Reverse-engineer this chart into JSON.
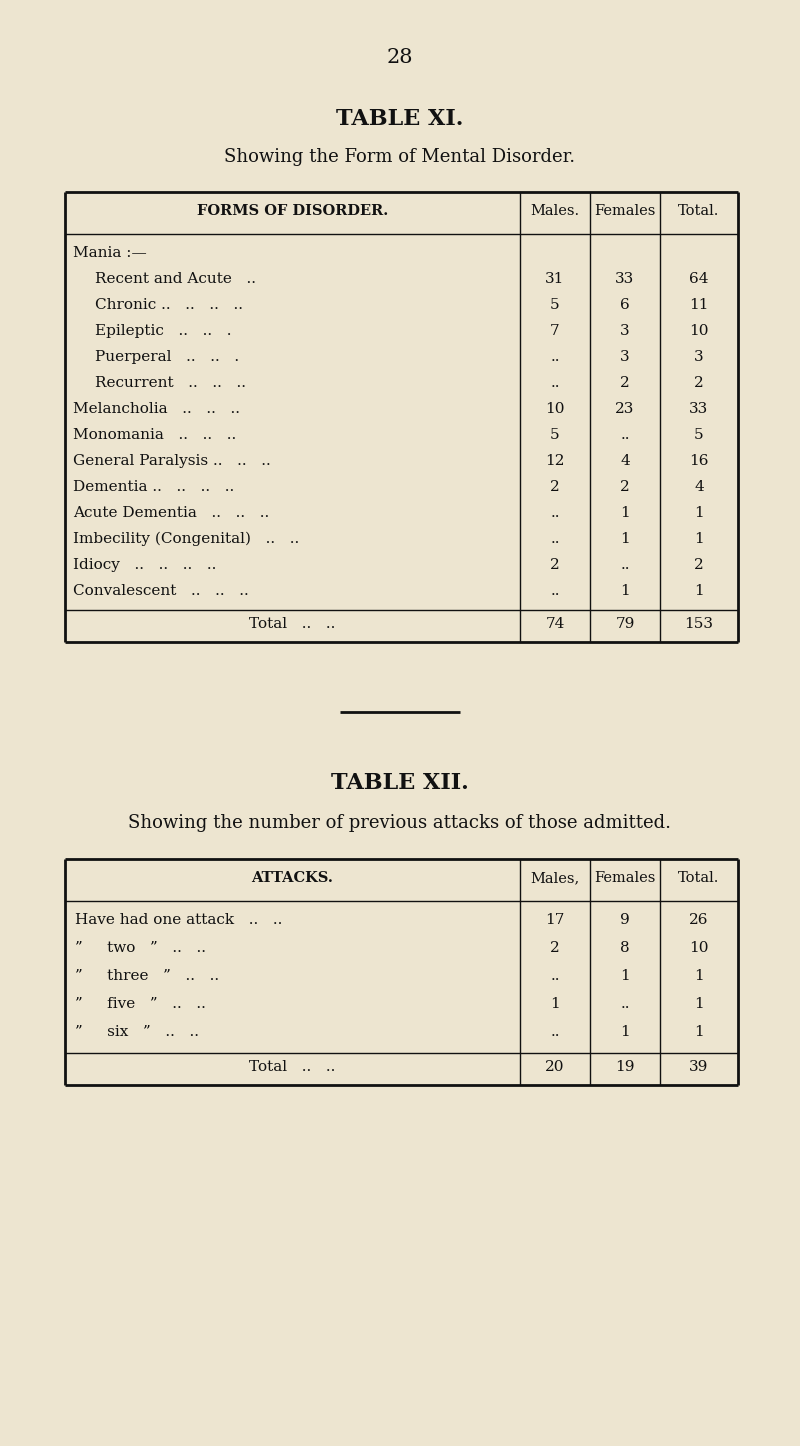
{
  "page_number": "28",
  "bg_color": "#ede5d0",
  "table1": {
    "title": "TABLE XI.",
    "subtitle": "Showing the Form of Mental Disorder.",
    "header": [
      "FORMS OF DISORDER.",
      "Males.",
      "Females",
      "Total."
    ],
    "rows": [
      {
        "label": "Mania :—",
        "indent": false,
        "males": "",
        "females": "",
        "total": ""
      },
      {
        "label": "Recent and Acute   ..",
        "indent": true,
        "males": "31",
        "females": "33",
        "total": "64"
      },
      {
        "label": "Chronic ..   ..   ..   ..",
        "indent": true,
        "males": "5",
        "females": "6",
        "total": "11"
      },
      {
        "label": "Epileptic   ..   ..   .",
        "indent": true,
        "males": "7",
        "females": "3",
        "total": "10"
      },
      {
        "label": "Puerperal   ..   ..   .",
        "indent": true,
        "males": "..",
        "females": "3",
        "total": "3"
      },
      {
        "label": "Recurrent   ..   ..   ..",
        "indent": true,
        "males": "..",
        "females": "2",
        "total": "2"
      },
      {
        "label": "Melancholia   ..   ..   ..",
        "indent": false,
        "males": "10",
        "females": "23",
        "total": "33"
      },
      {
        "label": "Monomania   ..   ..   ..",
        "indent": false,
        "males": "5",
        "females": "..",
        "total": "5"
      },
      {
        "label": "General Paralysis ..   ..   ..",
        "indent": false,
        "males": "12",
        "females": "4",
        "total": "16"
      },
      {
        "label": "Dementia ..   ..   ..   ..",
        "indent": false,
        "males": "2",
        "females": "2",
        "total": "4"
      },
      {
        "label": "Acute Dementia   ..   ..   ..",
        "indent": false,
        "males": "..",
        "females": "1",
        "total": "1"
      },
      {
        "label": "Imbecility (Congenital)   ..   ..",
        "indent": false,
        "males": "..",
        "females": "1",
        "total": "1"
      },
      {
        "label": "Idiocy   ..   ..   ..   ..",
        "indent": false,
        "males": "2",
        "females": "..",
        "total": "2"
      },
      {
        "label": "Convalescent   ..   ..   ..",
        "indent": false,
        "males": "..",
        "females": "1",
        "total": "1"
      }
    ],
    "total_row": {
      "label": "Total   ..   ..",
      "males": "74",
      "females": "79",
      "total": "153"
    }
  },
  "table2": {
    "title": "TABLE XII.",
    "subtitle": "Showing the number of previous attacks of those admitted.",
    "header": [
      "ATTACKS.",
      "Males,",
      "Females",
      "Total."
    ],
    "rows": [
      {
        "label": "Have had one attack   ..   ..",
        "males": "17",
        "females": "9",
        "total": "26"
      },
      {
        "”    two   ”   ..   ..": true,
        "label": "”     two   ”   ..   ..",
        "males": "2",
        "females": "8",
        "total": "10"
      },
      {
        "label": "”     three   ”   ..   ..",
        "males": "..",
        "females": "1",
        "total": "1"
      },
      {
        "label": "”     five   ”   ..   ..",
        "males": "1",
        "females": "..",
        "total": "1"
      },
      {
        "label": "”     six   ”   ..   ..",
        "males": "..",
        "females": "1",
        "total": "1"
      }
    ],
    "total_row": {
      "label": "Total   ..   ..",
      "males": "20",
      "females": "19",
      "total": "39"
    }
  },
  "text_color": "#111111",
  "font_size_title": 16,
  "font_size_subtitle": 13,
  "font_size_table": 11,
  "font_size_page": 15
}
